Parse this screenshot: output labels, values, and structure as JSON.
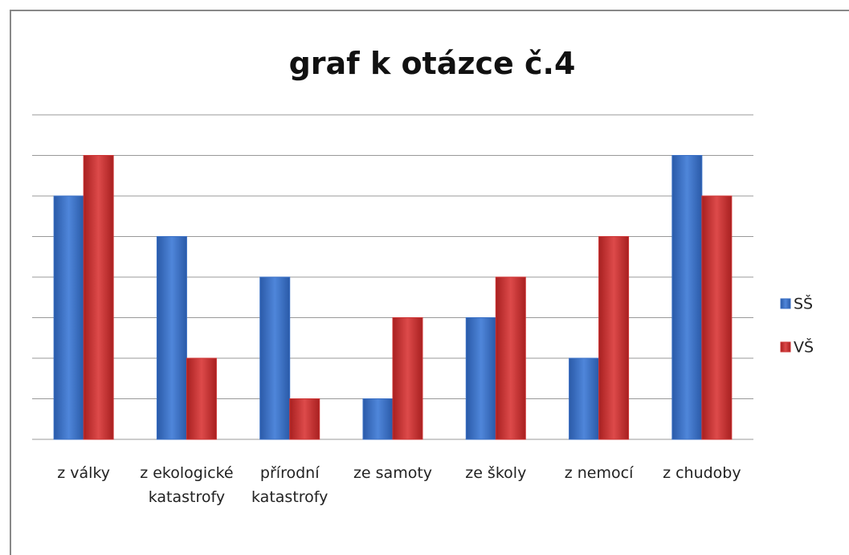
{
  "chart_data": {
    "type": "bar",
    "title": "graf k otázce č.4",
    "categories": [
      "z války",
      "z ekologické katastrofy",
      "přírodní katastrofy",
      "ze samoty",
      "ze školy",
      "z nemocí",
      "z chudoby"
    ],
    "series": [
      {
        "name": "SŠ",
        "color": "#3a6fc4",
        "values": [
          6,
          5,
          4,
          1,
          3,
          2,
          7
        ]
      },
      {
        "name": "VŠ",
        "color": "#cc3333",
        "values": [
          7,
          2,
          1,
          3,
          4,
          5,
          6
        ]
      }
    ],
    "ylim": [
      0,
      8
    ],
    "yticks": [
      0,
      1,
      2,
      3,
      4,
      5,
      6,
      7,
      8
    ],
    "grid": true,
    "legend": "right"
  }
}
